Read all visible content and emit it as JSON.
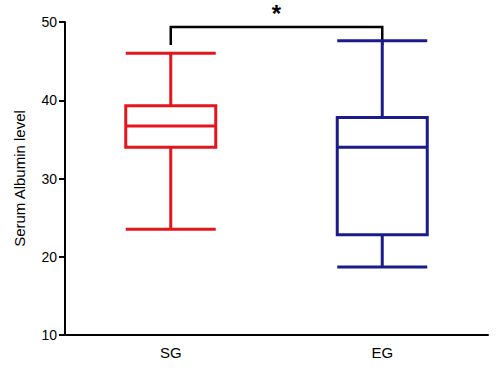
{
  "chart_data": {
    "type": "boxplot",
    "categories": [
      "SG",
      "EG"
    ],
    "boxes": [
      [
        23.5,
        34,
        36.7,
        39.3,
        46
      ],
      [
        18.7,
        22.8,
        34,
        37.8,
        47.6
      ]
    ],
    "colors": [
      "#e3161c",
      "#1b1b8a"
    ],
    "ylabel": "Serum Albumin level",
    "ylim": [
      10,
      50
    ],
    "yticks": [
      10,
      20,
      30,
      40,
      50
    ],
    "annotation": {
      "text": "*",
      "between": [
        "SG",
        "EG"
      ]
    }
  }
}
